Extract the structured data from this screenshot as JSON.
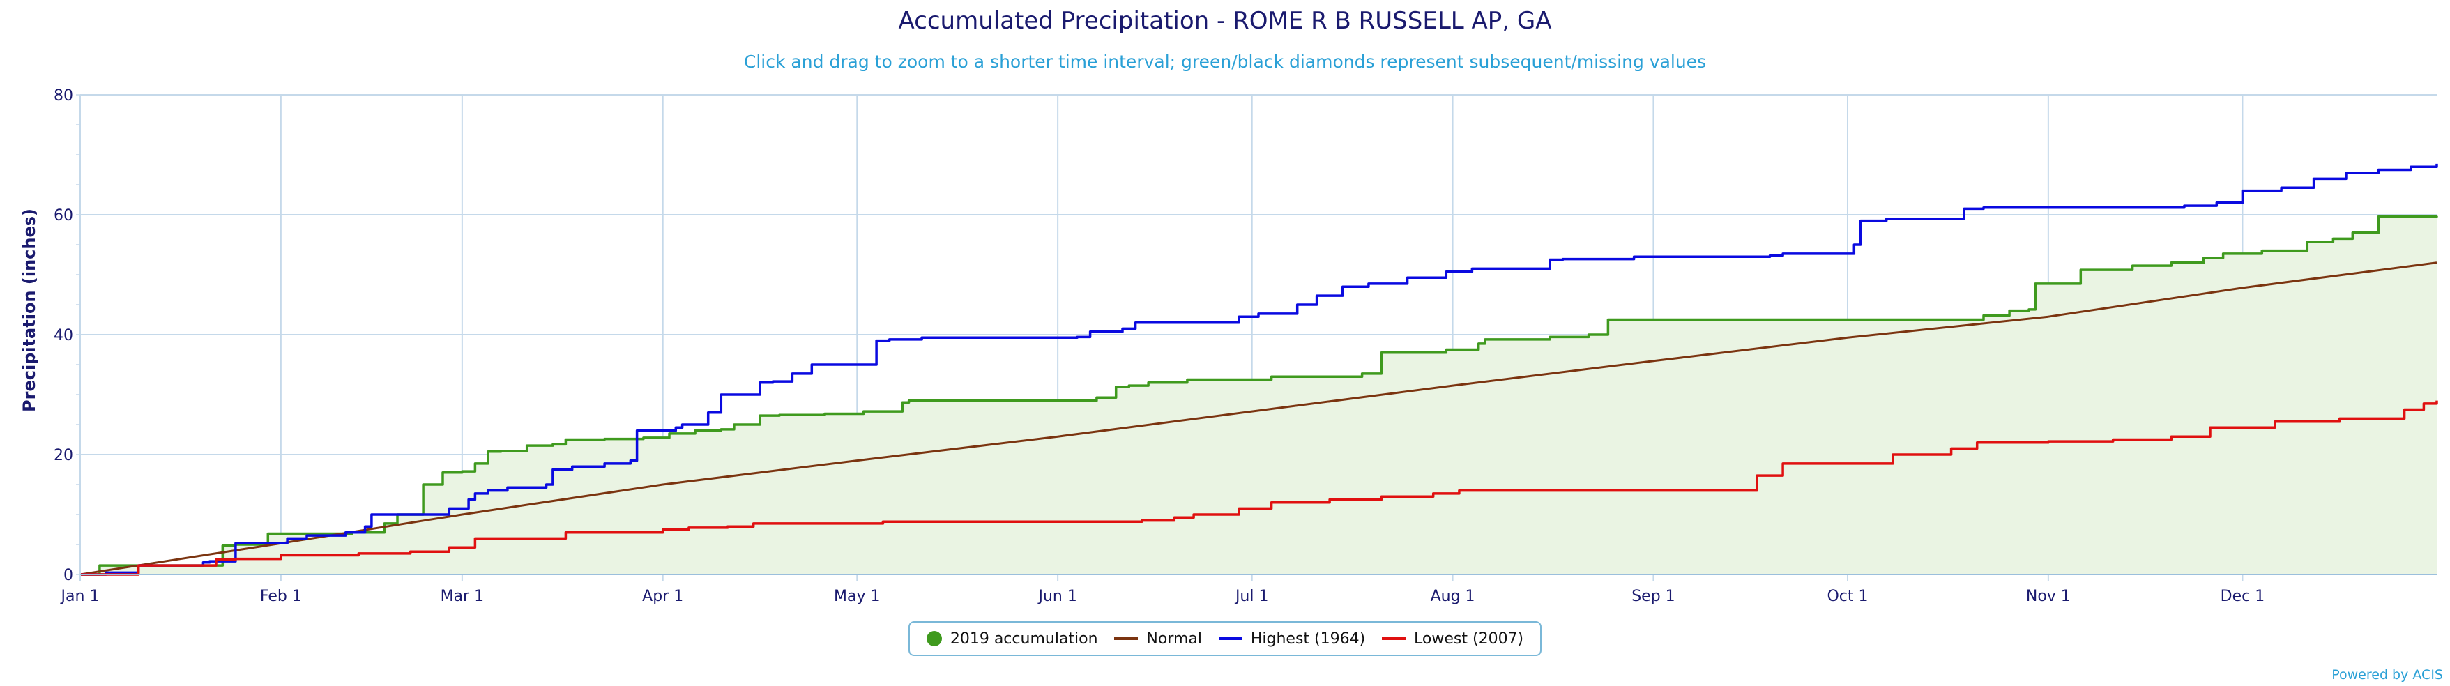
{
  "chart_data": {
    "type": "line",
    "title": "Accumulated Precipitation - ROME R B RUSSELL AP, GA",
    "subtitle": "Click and drag to zoom to a shorter time interval; green/black diamonds represent subsequent/missing values",
    "ylabel": "Precipitation (inches)",
    "xlabel": "",
    "ylim": [
      0,
      80
    ],
    "xlim": [
      1,
      365
    ],
    "yticks": [
      0,
      20,
      40,
      60,
      80
    ],
    "xtick_labels": [
      "Jan 1",
      "Feb 1",
      "Mar 1",
      "Apr 1",
      "May 1",
      "Jun 1",
      "Jul 1",
      "Aug 1",
      "Sep 1",
      "Oct 1",
      "Nov 1",
      "Dec 1"
    ],
    "xtick_days": [
      1,
      32,
      60,
      91,
      121,
      152,
      182,
      213,
      244,
      274,
      305,
      335
    ],
    "grid": true,
    "legend_position": "bottom-center",
    "x_unit": "day of year",
    "series": [
      {
        "name": "2019 accumulation",
        "color": "#3f9a1e",
        "fill": "#eaf4e3",
        "style": "area",
        "x": [
          1,
          4,
          8,
          20,
          23,
          25,
          30,
          40,
          43,
          48,
          50,
          54,
          57,
          60,
          62,
          64,
          66,
          70,
          74,
          76,
          82,
          86,
          88,
          92,
          96,
          100,
          102,
          106,
          109,
          116,
          122,
          128,
          129,
          140,
          158,
          161,
          163,
          166,
          172,
          185,
          199,
          202,
          212,
          217,
          218,
          228,
          234,
          237,
          260,
          295,
          299,
          302,
          303,
          310,
          318,
          324,
          329,
          332,
          338,
          345,
          349,
          352,
          356,
          365
        ],
        "y": [
          0,
          1.5,
          1.5,
          1.5,
          4.8,
          5.0,
          6.8,
          6.8,
          7.0,
          8.5,
          10.0,
          15.0,
          17.0,
          17.2,
          18.5,
          20.5,
          20.6,
          21.5,
          21.7,
          22.5,
          22.6,
          22.6,
          22.8,
          23.5,
          24.0,
          24.2,
          25.0,
          26.5,
          26.6,
          26.8,
          27.2,
          28.7,
          29.0,
          29.0,
          29.5,
          31.3,
          31.5,
          32.0,
          32.5,
          33.0,
          33.5,
          37.0,
          37.5,
          38.5,
          39.2,
          39.6,
          40.0,
          42.5,
          42.5,
          43.2,
          44.0,
          44.2,
          48.5,
          50.8,
          51.5,
          52.0,
          52.8,
          53.5,
          54.0,
          55.5,
          56.0,
          57.0,
          59.7,
          59.8
        ]
      },
      {
        "name": "Normal",
        "color": "#7b3410",
        "style": "line",
        "x": [
          1,
          32,
          60,
          91,
          121,
          152,
          182,
          213,
          244,
          274,
          305,
          335,
          365
        ],
        "y": [
          0,
          5.2,
          10.0,
          15.0,
          19.0,
          23.0,
          27.2,
          31.5,
          35.6,
          39.5,
          43.0,
          47.8,
          52.0
        ]
      },
      {
        "name": "Highest (1964)",
        "color": "#0a0ae0",
        "style": "line",
        "x": [
          1,
          5,
          10,
          20,
          21,
          25,
          33,
          36,
          42,
          45,
          46,
          49,
          58,
          61,
          62,
          64,
          67,
          73,
          74,
          77,
          82,
          86,
          87,
          93,
          94,
          98,
          100,
          106,
          108,
          111,
          114,
          124,
          126,
          131,
          155,
          157,
          162,
          164,
          173,
          180,
          183,
          189,
          192,
          196,
          200,
          206,
          212,
          216,
          228,
          230,
          241,
          262,
          264,
          275,
          276,
          280,
          292,
          295,
          326,
          331,
          335,
          341,
          346,
          351,
          356,
          361,
          365
        ],
        "y": [
          0,
          0.3,
          1.5,
          2.0,
          2.2,
          5.2,
          6.0,
          6.5,
          7.0,
          8.0,
          10.0,
          10.0,
          11.0,
          12.5,
          13.5,
          14.0,
          14.5,
          15.0,
          17.5,
          18.0,
          18.5,
          19.0,
          24.0,
          24.5,
          25.0,
          27.0,
          30.0,
          32.0,
          32.2,
          33.5,
          35.0,
          39.0,
          39.2,
          39.5,
          39.6,
          40.5,
          41.0,
          42.0,
          42.0,
          43.0,
          43.5,
          45.0,
          46.5,
          48.0,
          48.5,
          49.5,
          50.5,
          51.0,
          52.5,
          52.6,
          53.0,
          53.2,
          53.5,
          55.0,
          59.0,
          59.3,
          61.0,
          61.2,
          61.5,
          62.0,
          64.0,
          64.5,
          66.0,
          67.0,
          67.5,
          68.0,
          68.5
        ]
      },
      {
        "name": "Lowest (2007)",
        "color": "#e01010",
        "style": "line",
        "x": [
          1,
          10,
          22,
          25,
          32,
          44,
          52,
          58,
          62,
          76,
          91,
          95,
          101,
          105,
          120,
          125,
          165,
          170,
          173,
          180,
          185,
          194,
          202,
          210,
          214,
          243,
          260,
          264,
          276,
          281,
          290,
          294,
          305,
          315,
          324,
          330,
          340,
          350,
          360,
          363,
          365
        ],
        "y": [
          0,
          1.5,
          2.5,
          2.6,
          3.2,
          3.5,
          3.8,
          4.5,
          6.0,
          7.0,
          7.5,
          7.8,
          8.0,
          8.5,
          8.5,
          8.8,
          9.0,
          9.5,
          10.0,
          11.0,
          12.0,
          12.5,
          13.0,
          13.5,
          14.0,
          14.0,
          16.5,
          18.5,
          18.5,
          20.0,
          21.0,
          22.0,
          22.2,
          22.5,
          23.0,
          24.5,
          25.5,
          26.0,
          27.5,
          28.5,
          29.0
        ]
      }
    ]
  },
  "legend": {
    "items": [
      {
        "label": "2019 accumulation",
        "color": "#3f9a1e",
        "marker": "circle"
      },
      {
        "label": "Normal",
        "color": "#7b3410",
        "marker": "line"
      },
      {
        "label": "Highest (1964)",
        "color": "#0a0ae0",
        "marker": "line"
      },
      {
        "label": "Lowest (2007)",
        "color": "#e01010",
        "marker": "line"
      }
    ]
  },
  "credit": "Powered by ACIS",
  "colors": {
    "axis_text": "#1a1a6e",
    "grid": "#c5d9ea",
    "subtitle": "#2aa0d6"
  }
}
